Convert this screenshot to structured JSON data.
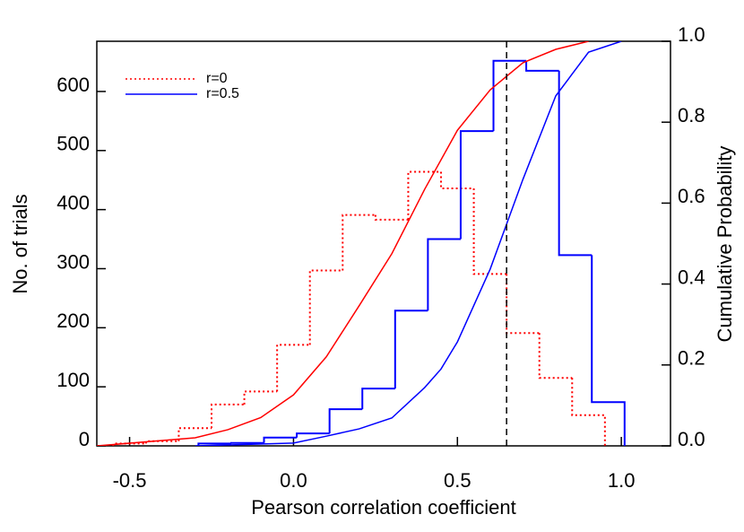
{
  "chart_data": {
    "type": "step-histogram",
    "xlabel": "Pearson correlation coefficient",
    "ylabel": "No. of trials",
    "y2label": "Cumulative Probability",
    "xlim": [
      -0.6,
      1.15
    ],
    "ylim": [
      0,
      685
    ],
    "y2lim": [
      0,
      1.0
    ],
    "xticks": [
      -0.5,
      {
        "value": 0,
        "label": "0.0"
      },
      0.5,
      {
        "value": 1,
        "label": "1.0"
      }
    ],
    "yticks": [
      0,
      100,
      200,
      300,
      400,
      500,
      600
    ],
    "y2ticks": [
      {
        "value": 0,
        "label": "0.0"
      },
      0.2,
      0.4,
      0.6,
      0.8,
      {
        "value": 1,
        "label": "1.0"
      }
    ],
    "vline": 0.65,
    "legend": "upper left",
    "series": [
      {
        "name": "r=0",
        "color": "#ff0000",
        "style": "dotted",
        "bins": [
          -0.55,
          -0.45,
          -0.35,
          -0.25,
          -0.15,
          -0.05,
          0.05,
          0.15,
          0.25,
          0.35,
          0.45,
          0.55,
          0.65,
          0.75,
          0.85,
          0.95
        ],
        "values": [
          4,
          8,
          30,
          70,
          92,
          171,
          297,
          391,
          383,
          464,
          436,
          291,
          191,
          115,
          52
        ]
      },
      {
        "name": "r=0.5",
        "color": "#0000ff",
        "style": "solid",
        "bins": [
          -0.29,
          -0.19,
          -0.09,
          0.01,
          0.11,
          0.21,
          0.31,
          0.41,
          0.51,
          0.61,
          0.71,
          0.81,
          0.91,
          1.01
        ],
        "values": [
          4,
          5,
          14,
          21,
          62,
          97,
          229,
          350,
          533,
          652,
          635,
          323,
          74
        ]
      }
    ],
    "cumulative": [
      {
        "color": "#ff0000",
        "axis": "y2",
        "x": [
          -0.6,
          -0.3,
          -0.2,
          -0.1,
          0.0,
          0.1,
          0.2,
          0.3,
          0.4,
          0.5,
          0.6,
          0.7,
          0.8,
          0.9
        ],
        "values": [
          0,
          0.02,
          0.04,
          0.07,
          0.126,
          0.22,
          0.346,
          0.475,
          0.634,
          0.78,
          0.88,
          0.947,
          0.98,
          1.0
        ]
      },
      {
        "color": "#0000ff",
        "axis": "y2",
        "x": [
          -0.3,
          0.0,
          0.1,
          0.2,
          0.3,
          0.4,
          0.45,
          0.5,
          0.6,
          0.7,
          0.8,
          0.9,
          1.0
        ],
        "values": [
          0,
          0.007,
          0.024,
          0.042,
          0.069,
          0.144,
          0.19,
          0.257,
          0.437,
          0.659,
          0.865,
          0.973,
          1.0
        ]
      }
    ]
  }
}
